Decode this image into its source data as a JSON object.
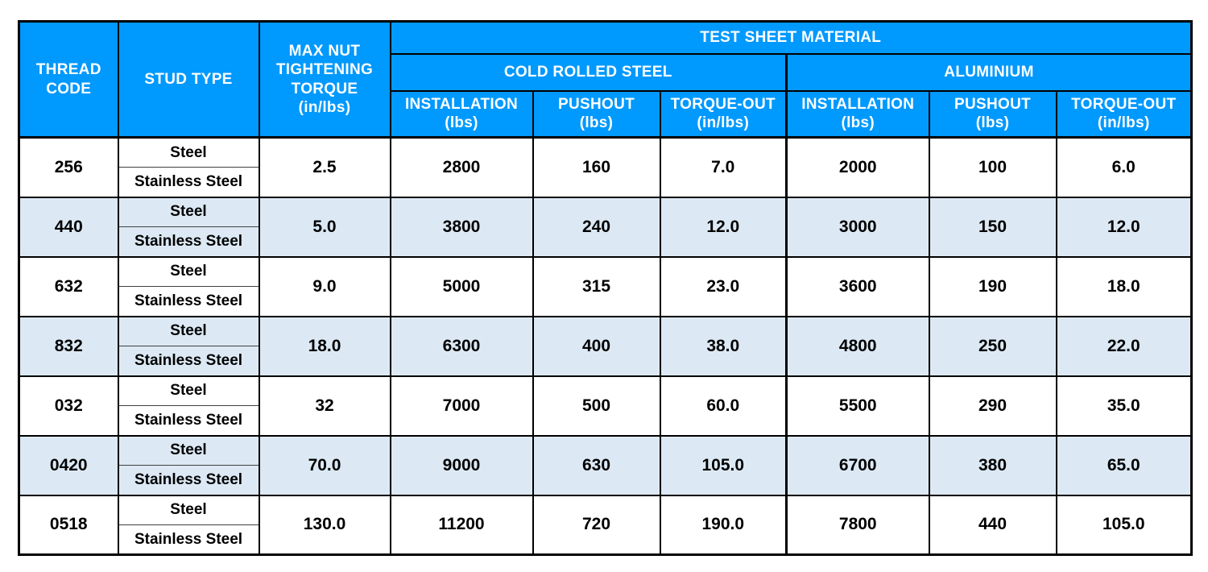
{
  "table": {
    "header": {
      "thread_code_line1": "THREAD",
      "thread_code_line2": "CODE",
      "stud_type": "STUD TYPE",
      "max_nut_lines": [
        "MAX NUT",
        "TIGHTENING",
        "TORQUE",
        "(in/lbs)"
      ],
      "test_sheet_material": "TEST SHEET MATERIAL",
      "materials": [
        {
          "name": "COLD ROLLED STEEL",
          "columns": [
            {
              "label": "INSTALLATION",
              "unit": "(lbs)"
            },
            {
              "label": "PUSHOUT",
              "unit": "(lbs)"
            },
            {
              "label": "TORQUE-OUT",
              "unit": "(in/lbs)"
            }
          ]
        },
        {
          "name": "ALUMINIUM",
          "columns": [
            {
              "label": "INSTALLATION",
              "unit": "(lbs)"
            },
            {
              "label": "PUSHOUT",
              "unit": "(lbs)"
            },
            {
              "label": "TORQUE-OUT",
              "unit": "(in/lbs)"
            }
          ]
        }
      ]
    },
    "stud_types": [
      "Steel",
      "Stainless Steel"
    ],
    "rows": [
      {
        "thread_code": "256",
        "max_nut_torque": "2.5",
        "crs_installation": "2800",
        "crs_pushout": "160",
        "crs_torque_out": "7.0",
        "alu_installation": "2000",
        "alu_pushout": "100",
        "alu_torque_out": "6.0"
      },
      {
        "thread_code": "440",
        "max_nut_torque": "5.0",
        "crs_installation": "3800",
        "crs_pushout": "240",
        "crs_torque_out": "12.0",
        "alu_installation": "3000",
        "alu_pushout": "150",
        "alu_torque_out": "12.0"
      },
      {
        "thread_code": "632",
        "max_nut_torque": "9.0",
        "crs_installation": "5000",
        "crs_pushout": "315",
        "crs_torque_out": "23.0",
        "alu_installation": "3600",
        "alu_pushout": "190",
        "alu_torque_out": "18.0"
      },
      {
        "thread_code": "832",
        "max_nut_torque": "18.0",
        "crs_installation": "6300",
        "crs_pushout": "400",
        "crs_torque_out": "38.0",
        "alu_installation": "4800",
        "alu_pushout": "250",
        "alu_torque_out": "22.0"
      },
      {
        "thread_code": "032",
        "max_nut_torque": "32",
        "crs_installation": "7000",
        "crs_pushout": "500",
        "crs_torque_out": "60.0",
        "alu_installation": "5500",
        "alu_pushout": "290",
        "alu_torque_out": "35.0"
      },
      {
        "thread_code": "0420",
        "max_nut_torque": "70.0",
        "crs_installation": "9000",
        "crs_pushout": "630",
        "crs_torque_out": "105.0",
        "alu_installation": "6700",
        "alu_pushout": "380",
        "alu_torque_out": "65.0"
      },
      {
        "thread_code": "0518",
        "max_nut_torque": "130.0",
        "crs_installation": "11200",
        "crs_pushout": "720",
        "crs_torque_out": "190.0",
        "alu_installation": "7800",
        "alu_pushout": "440",
        "alu_torque_out": "105.0"
      }
    ],
    "colors": {
      "header_bg": "#0099fe",
      "header_text": "#ffffff",
      "alt_row_bg": "#dce9f5",
      "body_text": "#000000",
      "border": "#000000"
    }
  }
}
